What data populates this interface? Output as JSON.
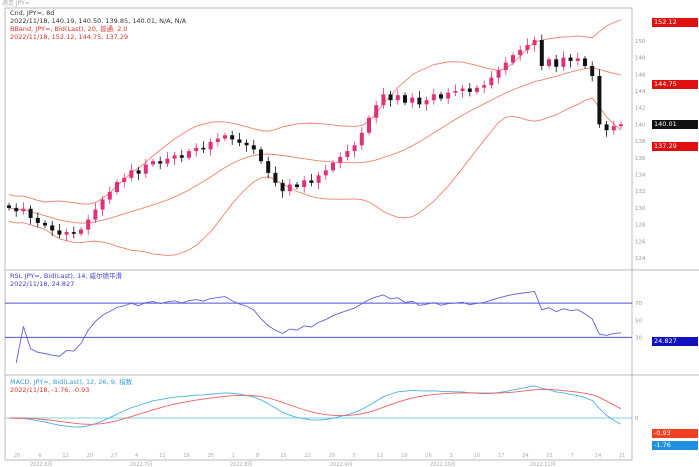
{
  "header": {
    "title": "週足 JPY="
  },
  "price_legend": {
    "line1": "Cnd, JPY=, 8d",
    "line2": "2022/11/18, 140.19, 140.50, 139.85, 140.01, N/A, N/A",
    "line3": "BBand, JPY=, Bid(Last), 20, 普通, 2.0",
    "line4": "2022/11/18, 152.12, 144.75, 137.29"
  },
  "rsi_legend": {
    "line1": "RSI, JPY=, Bid(Last), 14, 威尔德平滑",
    "line2": "2022/11/18, 24.827"
  },
  "macd_legend": {
    "line1": "MACD, JPY=, Bid(Last), 12, 26, 9, 指数",
    "line2": "2022/11/18, -1.76, -0.93"
  },
  "tags": {
    "bb_upper": "152.12",
    "bb_mid": "144.75",
    "last": "140.01",
    "bb_lower": "137.29",
    "rsi": "24.827",
    "macd_signal": "-0.93",
    "macd": "-1.76"
  },
  "colors": {
    "up": "#e0307a",
    "down": "#111111",
    "band": "#f08070",
    "rsi": "#6060e0",
    "macd": "#4ab0e8",
    "signal": "#f06060"
  },
  "chart_data": [
    {
      "type": "candlestick",
      "title": "Cnd, JPY=, 8d",
      "ylim": [
        124,
        154
      ],
      "yticks": [
        124,
        126,
        128,
        130,
        132,
        134,
        136,
        138,
        140,
        142,
        144,
        146,
        148,
        150
      ],
      "close": [
        130.0,
        129.6,
        129.9,
        128.8,
        128.2,
        127.9,
        127.3,
        126.8,
        127.1,
        126.9,
        127.4,
        128.6,
        129.8,
        131.0,
        131.9,
        133.1,
        133.6,
        134.5,
        134.1,
        135.2,
        135.6,
        135.3,
        135.9,
        136.3,
        136.0,
        136.8,
        137.2,
        137.0,
        137.9,
        138.3,
        138.7,
        138.2,
        137.8,
        137.5,
        137.0,
        135.6,
        134.2,
        133.0,
        132.0,
        132.8,
        132.5,
        133.3,
        133.0,
        133.9,
        134.5,
        135.4,
        136.1,
        136.8,
        137.5,
        139.0,
        140.8,
        142.3,
        143.6,
        142.9,
        143.5,
        142.6,
        143.2,
        142.4,
        142.9,
        143.6,
        143.1,
        143.8,
        144.0,
        144.3,
        143.9,
        144.4,
        144.7,
        145.6,
        146.5,
        147.4,
        148.3,
        148.9,
        149.5,
        150.1,
        147.0,
        147.8,
        146.9,
        148.0,
        147.6,
        147.9,
        147.0,
        145.8,
        140.0,
        139.3,
        139.8,
        140.01
      ],
      "bollinger": {
        "period": 20,
        "stdev": 2.0
      }
    },
    {
      "type": "line",
      "title": "RSI",
      "period": 14,
      "ylim": [
        0,
        100
      ],
      "levels": [
        70,
        30
      ],
      "yticks": [
        30,
        50,
        70
      ]
    },
    {
      "type": "line",
      "title": "MACD",
      "params": [
        12,
        26,
        9
      ],
      "yticks": [
        0
      ]
    }
  ],
  "xaxis": {
    "ticks": [
      "20",
      "6",
      "13",
      "20",
      "27",
      "4",
      "11",
      "18",
      "25",
      "1",
      "8",
      "15",
      "22",
      "29",
      "5",
      "12",
      "19",
      "26",
      "3",
      "10",
      "17",
      "24",
      "31",
      "7",
      "14",
      "21"
    ],
    "periods": [
      "2022.6月",
      "2022.7月",
      "2022.8月",
      "2022.9月",
      "2022.10月",
      "2022.11月"
    ]
  }
}
